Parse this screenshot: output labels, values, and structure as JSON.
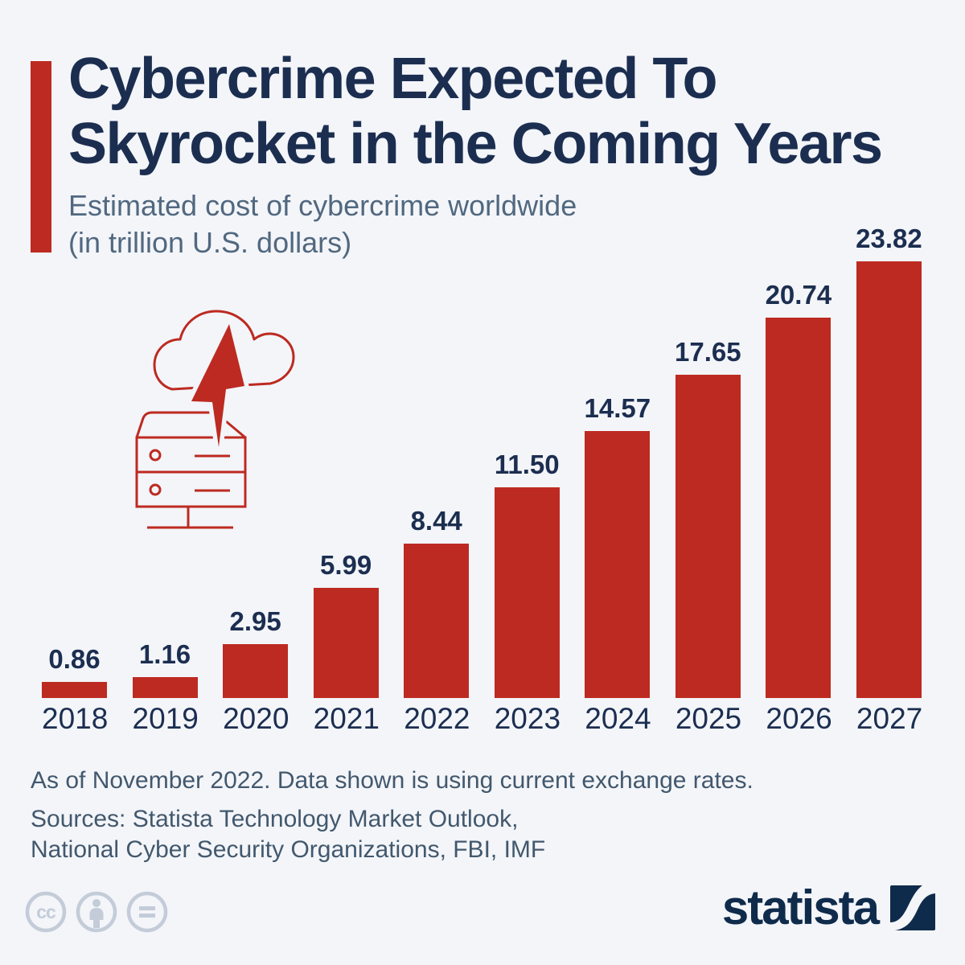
{
  "header": {
    "title_line1": "Cybercrime Expected To",
    "title_line2": "Skyrocket in the Coming Years",
    "subtitle_line1": "Estimated cost of cybercrime worldwide",
    "subtitle_line2": "(in trillion U.S. dollars)"
  },
  "chart_data": {
    "type": "bar",
    "title": "Estimated cost of cybercrime worldwide (in trillion U.S. dollars)",
    "categories": [
      "2018",
      "2019",
      "2020",
      "2021",
      "2022",
      "2023",
      "2024",
      "2025",
      "2026",
      "2027"
    ],
    "values": [
      0.86,
      1.16,
      2.95,
      5.99,
      8.44,
      11.5,
      14.57,
      17.65,
      20.74,
      23.82
    ],
    "xlabel": "",
    "ylabel": "",
    "ylim": [
      0,
      24
    ],
    "grid": false,
    "legend": false,
    "bar_color": "#bd2a21",
    "value_label_decimals": 2
  },
  "footer": {
    "note": "As of November 2022. Data shown is using current exchange rates.",
    "sources_line1": "Sources: Statista Technology Market Outlook,",
    "sources_line2": "National Cyber Security Organizations, FBI, IMF"
  },
  "branding": {
    "logo_text": "statista",
    "license_icons": [
      "creative-commons",
      "attribution",
      "no-derivatives"
    ]
  },
  "colors": {
    "background": "#f3f5f9",
    "accent_red": "#bd2a21",
    "navy": "#1c2e50",
    "subtitle_text": "#51687f",
    "footer_text": "#42586d",
    "license_gray": "#c3ccd8",
    "logo_navy": "#0f2b4c"
  }
}
